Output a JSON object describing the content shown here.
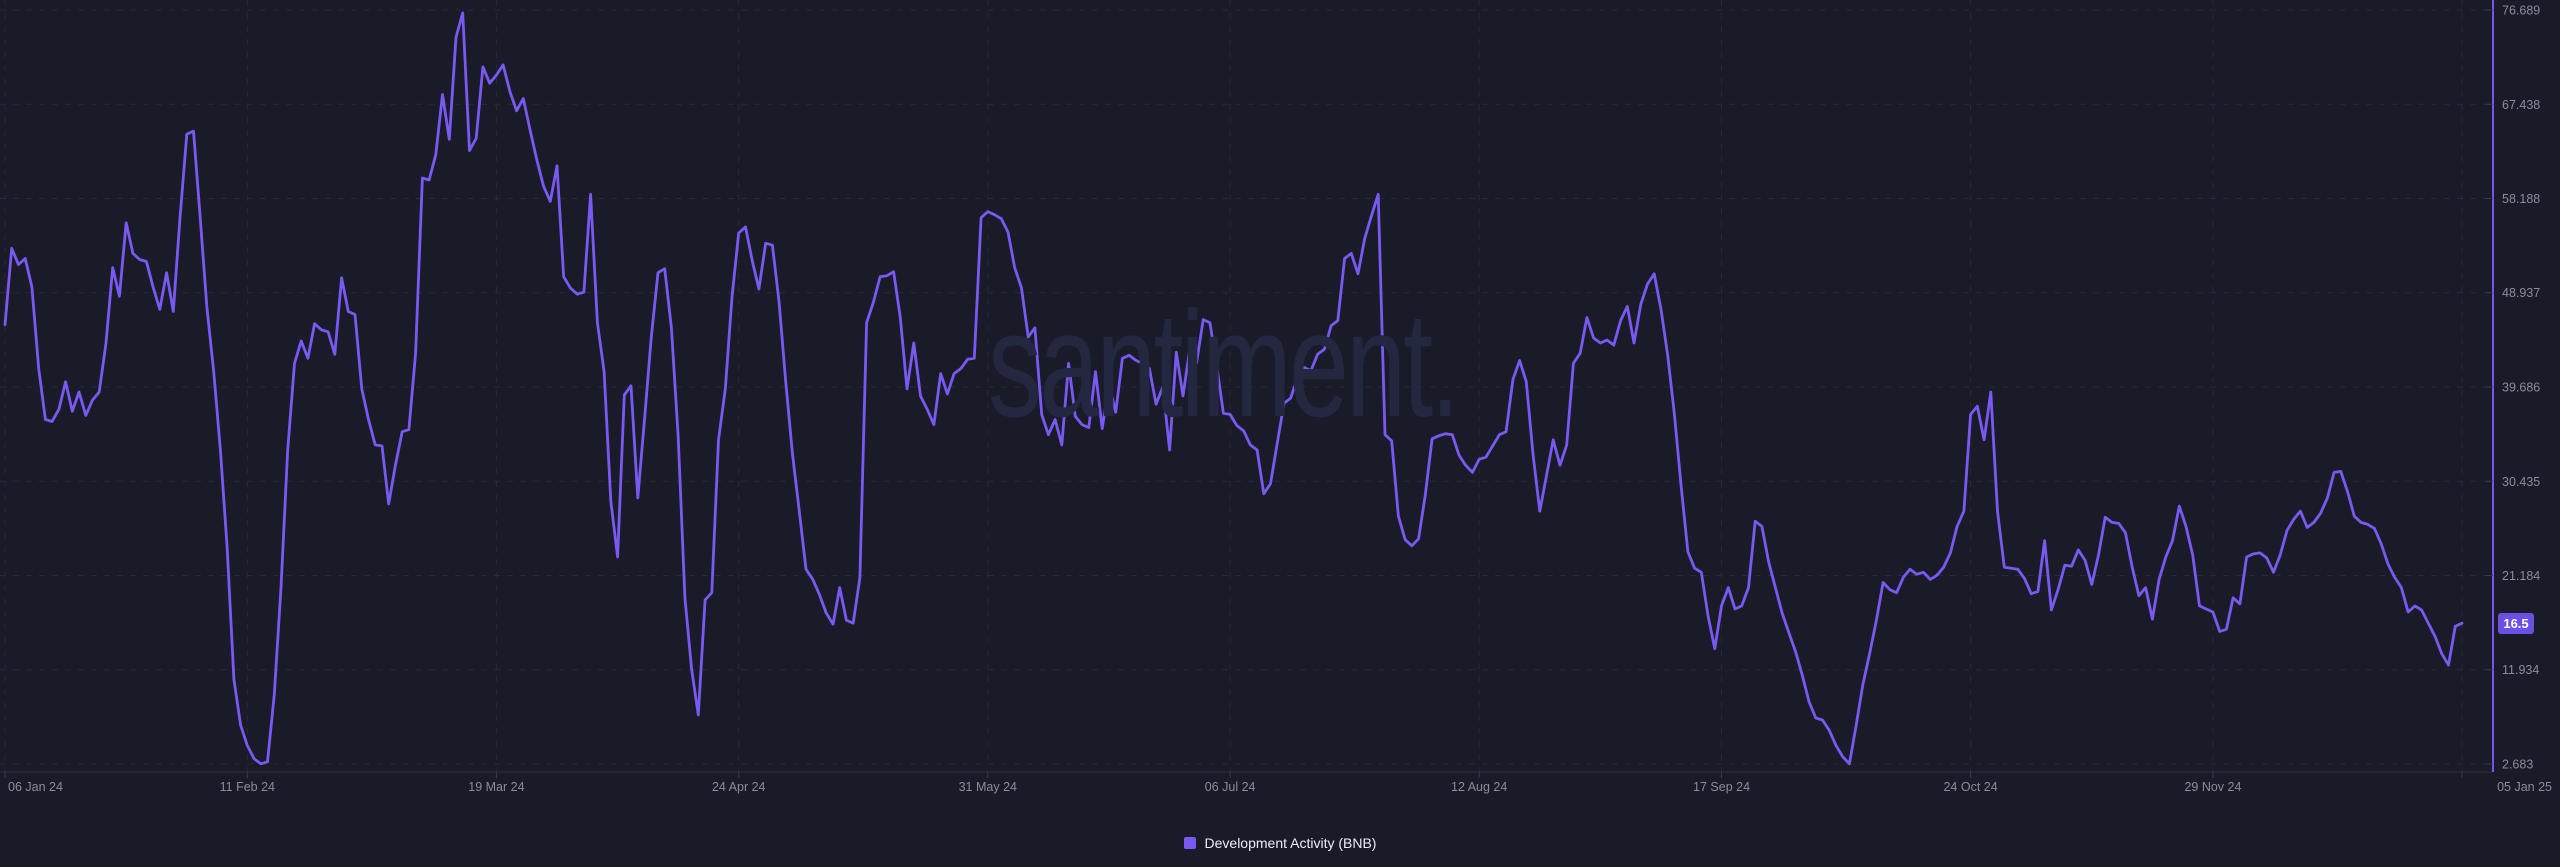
{
  "chart_data": {
    "type": "line",
    "watermark": "santiment.",
    "last_value_badge": "16.5",
    "grid": "dashed",
    "legend_position": "bottom-center",
    "colors": {
      "background": "#191b28",
      "line": "#7a59f2",
      "y_axis_line": "#7456ea",
      "x_axis_line": "#2e3140",
      "gridline": "#272a3a",
      "tick_text": "#898da0",
      "badge_bg": "#6c50e6",
      "badge_text": "#ffffff",
      "watermark": "#232740"
    },
    "x_axis": {
      "tick_labels": [
        "06 Jan 24",
        "11 Feb 24",
        "19 Mar 24",
        "24 Apr 24",
        "31 May 24",
        "06 Jul 24",
        "12 Aug 24",
        "17 Sep 24",
        "24 Oct 24",
        "29 Nov 24",
        "05 Jan 25"
      ],
      "tick_days": [
        0,
        36,
        73,
        109,
        146,
        182,
        219,
        255,
        292,
        328,
        365
      ]
    },
    "y_axis": {
      "tick_labels": [
        "76.689",
        "67.438",
        "58.188",
        "48.937",
        "39.686",
        "30.435",
        "21.184",
        "11.934",
        "2.683"
      ],
      "tick_values": [
        76.689,
        67.438,
        58.188,
        48.937,
        39.686,
        30.435,
        21.184,
        11.934,
        2.683
      ],
      "min": 2.683,
      "max": 76.689
    },
    "series": [
      {
        "name": "Development Activity (BNB)",
        "color": "#7a59f2",
        "start_date": "06 Jan 24",
        "end_date": "05 Jan 25",
        "sampling": "daily",
        "last_value": 16.5,
        "values": [
          45.8,
          53.3,
          51.7,
          52.3,
          49.5,
          41.5,
          36.5,
          36.3,
          37.5,
          40.2,
          37.3,
          39.2,
          36.9,
          38.4,
          39.2,
          44.0,
          51.4,
          48.6,
          55.8,
          52.8,
          52.2,
          52.0,
          49.5,
          47.3,
          50.9,
          47.1,
          56.3,
          64.5,
          64.8,
          56.3,
          47.5,
          41.2,
          33.5,
          24.0,
          11.0,
          6.5,
          4.5,
          3.2,
          2.7,
          2.9,
          9.5,
          20.0,
          33.5,
          42.0,
          44.2,
          42.5,
          45.9,
          45.3,
          45.1,
          42.9,
          50.4,
          47.1,
          46.8,
          39.5,
          36.5,
          34.0,
          33.9,
          28.2,
          32.0,
          35.3,
          35.5,
          43.0,
          60.2,
          60.0,
          62.5,
          68.4,
          64.0,
          74.0,
          76.4,
          62.9,
          64.1,
          71.1,
          69.5,
          70.3,
          71.3,
          68.7,
          66.8,
          68.0,
          64.9,
          62.0,
          59.4,
          57.9,
          61.4,
          50.5,
          49.4,
          48.8,
          49.0,
          58.6,
          46.0,
          41.2,
          28.5,
          23.0,
          38.9,
          39.8,
          28.8,
          36.5,
          44.5,
          50.9,
          51.3,
          45.5,
          34.8,
          19.0,
          12.0,
          7.5,
          18.8,
          19.5,
          34.5,
          39.5,
          48.5,
          54.8,
          55.4,
          52.1,
          49.3,
          53.8,
          53.6,
          48.0,
          40.0,
          33.0,
          27.5,
          21.8,
          20.8,
          19.3,
          17.5,
          16.4,
          20.0,
          16.8,
          16.5,
          21.0,
          46.0,
          48.0,
          50.5,
          50.6,
          51.0,
          46.5,
          39.5,
          44.0,
          38.8,
          37.5,
          36.0,
          41.0,
          39.0,
          41.0,
          41.5,
          42.4,
          42.5,
          56.3,
          56.9,
          56.6,
          56.2,
          54.9,
          51.4,
          49.4,
          44.6,
          45.5,
          37.0,
          35.0,
          36.5,
          34.0,
          42.0,
          36.8,
          36.0,
          35.7,
          41.2,
          35.6,
          40.0,
          37.2,
          42.5,
          42.8,
          42.3,
          42.0,
          41.5,
          38.0,
          39.7,
          33.5,
          43.1,
          38.8,
          43.4,
          42.0,
          46.3,
          46.0,
          41.8,
          37.1,
          37.0,
          35.9,
          35.4,
          34.0,
          33.5,
          29.2,
          30.2,
          34.2,
          38.1,
          38.6,
          40.6,
          41.6,
          41.3,
          42.9,
          43.4,
          45.7,
          46.2,
          52.3,
          52.8,
          50.8,
          54.3,
          56.5,
          58.6,
          35.0,
          34.4,
          27.0,
          24.7,
          24.1,
          24.8,
          29.1,
          34.6,
          34.9,
          35.1,
          35.0,
          33.0,
          32.0,
          31.3,
          32.6,
          32.8,
          33.9,
          35.0,
          35.3,
          40.4,
          42.3,
          40.2,
          33.0,
          27.5,
          31.0,
          34.5,
          32.0,
          34.0,
          42.0,
          43.0,
          46.5,
          44.5,
          44.0,
          44.3,
          43.8,
          46.2,
          47.6,
          44.0,
          47.8,
          49.8,
          50.8,
          47.3,
          42.8,
          37.0,
          30.0,
          23.5,
          21.9,
          21.5,
          17.2,
          14.0,
          18.2,
          20.0,
          17.9,
          18.2,
          20.0,
          26.5,
          26.0,
          22.5,
          20.0,
          17.5,
          15.6,
          13.7,
          11.4,
          8.8,
          7.2,
          7.0,
          6.0,
          4.5,
          3.4,
          2.7,
          6.5,
          10.5,
          13.5,
          16.8,
          20.5,
          19.8,
          19.5,
          21.0,
          21.8,
          21.3,
          21.5,
          20.8,
          21.2,
          22.0,
          23.4,
          26.0,
          27.5,
          37.0,
          37.8,
          34.5,
          39.2,
          27.5,
          22.0,
          21.9,
          21.8,
          20.9,
          19.4,
          19.6,
          24.6,
          17.8,
          19.8,
          22.2,
          22.1,
          23.7,
          22.7,
          20.3,
          23.2,
          26.9,
          26.4,
          26.3,
          25.4,
          22.0,
          19.2,
          20.0,
          16.9,
          20.8,
          23.0,
          24.6,
          28.0,
          26.0,
          23.2,
          18.2,
          17.9,
          17.6,
          15.7,
          15.9,
          19.0,
          18.4,
          23.0,
          23.3,
          23.4,
          22.9,
          21.5,
          23.2,
          25.6,
          26.7,
          27.5,
          25.9,
          26.4,
          27.3,
          28.8,
          31.3,
          31.4,
          29.4,
          27.0,
          26.4,
          26.2,
          25.8,
          24.3,
          22.3,
          21.0,
          20.0,
          17.6,
          18.2,
          17.8,
          16.5,
          15.2,
          13.5,
          12.4,
          16.2,
          16.5
        ]
      }
    ]
  }
}
